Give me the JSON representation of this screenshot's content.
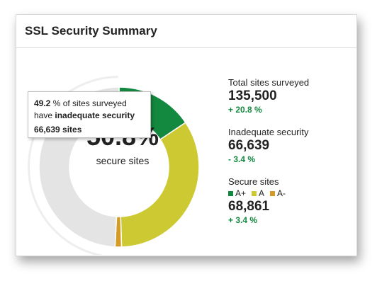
{
  "header": {
    "title": "SSL Security Summary"
  },
  "colors": {
    "a_plus": "#13883f",
    "a": "#cdc932",
    "a_minus": "#d49b26",
    "inadequate": "#e4e4e4",
    "positive": "#13883f",
    "negative": "#13883f",
    "outer_ring": "#eeeeee"
  },
  "donut": {
    "center_value": "50.8%",
    "center_label": "secure sites",
    "segments": [
      {
        "name": "A+",
        "fraction": 0.156
      },
      {
        "name": "A",
        "fraction": 0.339
      },
      {
        "name": "A-",
        "fraction": 0.013
      },
      {
        "name": "Inadequate",
        "fraction": 0.492
      }
    ]
  },
  "tooltip": {
    "percent": "49.2",
    "text_mid": " % of sites surveyed",
    "text_pre": "have ",
    "text_bold": "inadequate security",
    "count": "66,639 sites"
  },
  "stats": {
    "total": {
      "label": "Total sites surveyed",
      "value": "135,500",
      "change": "+ 20.8 %"
    },
    "inadequate": {
      "label": "Inadequate security",
      "value": "66,639",
      "change": "- 3.4 %"
    },
    "secure": {
      "label": "Secure sites",
      "legend": [
        "A+",
        "A",
        "A-"
      ],
      "value": "68,861",
      "change": "+ 3.4 %"
    }
  }
}
